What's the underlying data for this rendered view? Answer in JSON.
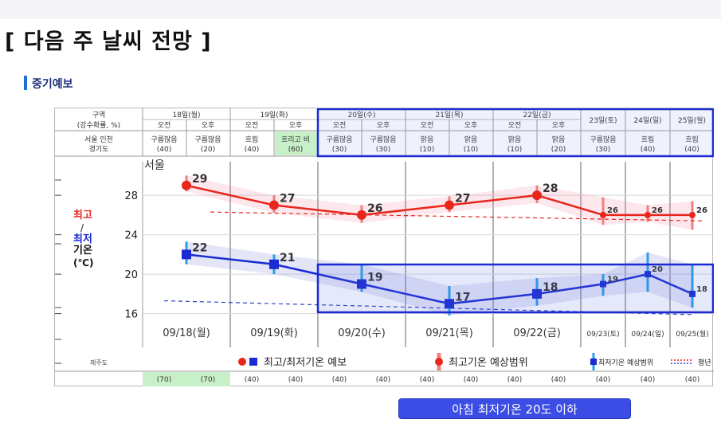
{
  "page": {
    "title": "[ 다음 주 날씨 전망 ]",
    "section": "중기예보",
    "note": "아침 최저기온 20도 이하"
  },
  "table": {
    "header_label_1": "구역",
    "header_label_2": "(강수확률, %)",
    "region_label_1": "서울 인천",
    "region_label_2": "경기도",
    "am": "오전",
    "pm": "오후",
    "days": [
      {
        "date": "18일(월)",
        "am_sky": "구름많음",
        "am_pop": "(40)",
        "pm_sky": "구름많음",
        "pm_pop": "(20)"
      },
      {
        "date": "19일(화)",
        "am_sky": "흐림",
        "am_pop": "(40)",
        "pm_sky": "흐리고 비",
        "pm_pop": "(60)"
      },
      {
        "date": "20일(수)",
        "am_sky": "구름많음",
        "am_pop": "(30)",
        "pm_sky": "구름많음",
        "pm_pop": "(30)"
      },
      {
        "date": "21일(목)",
        "am_sky": "맑음",
        "am_pop": "(10)",
        "pm_sky": "맑음",
        "pm_pop": "(10)"
      },
      {
        "date": "22일(금)",
        "am_sky": "맑음",
        "am_pop": "(10)",
        "pm_sky": "맑음",
        "pm_pop": "(20)"
      },
      {
        "date": "23일(토)",
        "sky": "구름많음",
        "pop": "(30)"
      },
      {
        "date": "24일(일)",
        "sky": "흐림",
        "pop": "(40)"
      },
      {
        "date": "25일(월)",
        "sky": "흐림",
        "pop": "(40)"
      }
    ]
  },
  "bottom_row": {
    "label": "제주도",
    "values": [
      "(70)",
      "(70)",
      "(40)",
      "(40)",
      "(40)",
      "(40)",
      "(40)",
      "(40)",
      "(40)",
      "(40)",
      "(40)",
      "(40)",
      "(40)"
    ]
  },
  "legend": {
    "forecast": "최고/최저기온 예보",
    "max_range": "최고기온 예상범위",
    "min_range": "최저기온 예상범위",
    "normal": "평년"
  },
  "chart_data": {
    "type": "line",
    "title": "서울",
    "ylabel_max": "최고",
    "ylabel_sep": "/",
    "ylabel_min": "최저",
    "ylabel_temp": "기온",
    "ylabel_unit": "(℃)",
    "ylim": [
      15,
      31
    ],
    "yticks": [
      16,
      20,
      24,
      28
    ],
    "x": [
      "09/18(월)",
      "09/19(화)",
      "09/20(수)",
      "09/21(목)",
      "09/22(금)",
      "09/23(토)",
      "09/24(일)",
      "09/25(월)"
    ],
    "series": [
      {
        "name": "최고기온",
        "values": [
          29,
          27,
          26,
          27,
          28,
          26,
          26,
          26
        ],
        "color": "#e8261c",
        "range_low": [
          28.4,
          26.2,
          25.2,
          26.3,
          27.2,
          25.0,
          25.3,
          24.5
        ],
        "range_high": [
          30.0,
          28.0,
          27.0,
          27.9,
          29.0,
          27.8,
          27.0,
          27.4
        ]
      },
      {
        "name": "최저기온",
        "values": [
          22,
          21,
          19,
          17,
          18,
          19,
          20,
          18
        ],
        "color": "#1a2bd4",
        "range_low": [
          21.0,
          20.0,
          18.2,
          15.8,
          16.8,
          17.8,
          18.2,
          16.6
        ],
        "range_high": [
          23.3,
          22.0,
          21.0,
          18.8,
          19.6,
          20.0,
          22.2,
          21.0
        ]
      }
    ],
    "normal_max": [
      26.3,
      25.4
    ],
    "normal_min": [
      17.3,
      15.9
    ],
    "legend_position": "bottom"
  },
  "colors": {
    "highlight": "#1a2bd4",
    "max": "#e8261c",
    "min": "#1a2bd4",
    "rain_cell": "#c8f0c8"
  }
}
